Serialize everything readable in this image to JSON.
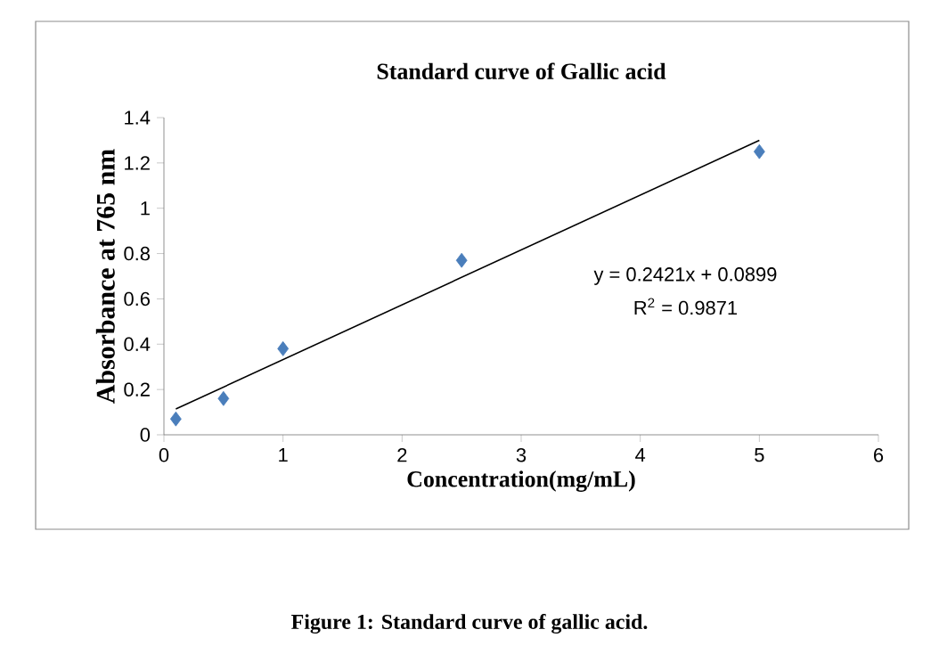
{
  "chart_data": {
    "type": "scatter",
    "title": "Standard curve of Gallic acid",
    "xlabel": "Concentration(mg/mL)",
    "ylabel": "Absorbance at 765 nm",
    "xlim": [
      0,
      6
    ],
    "xticks": [
      0,
      1,
      2,
      3,
      4,
      5,
      6
    ],
    "ylim": [
      0,
      1.4
    ],
    "yticks": [
      0,
      0.2,
      0.4,
      0.6,
      0.8,
      1,
      1.2,
      1.4
    ],
    "grid": false,
    "marker": "diamond",
    "series": [
      {
        "color": "#4a7ebb",
        "x": [
          0.1,
          0.5,
          1,
          2.5,
          5
        ],
        "values": [
          0.07,
          0.16,
          0.38,
          0.77,
          1.25
        ]
      },
      {
        "type": "line",
        "color": "#000000",
        "line_style": "solid",
        "marker": "none",
        "x": [
          0.1,
          5
        ],
        "values": [
          0.114,
          1.3
        ]
      }
    ],
    "annotations": [
      "y = 0.2421x + 0.0899",
      "R$^{2}$ = 0.9871",
      "Figure 1: Standard curve of gallic acid."
    ]
  }
}
